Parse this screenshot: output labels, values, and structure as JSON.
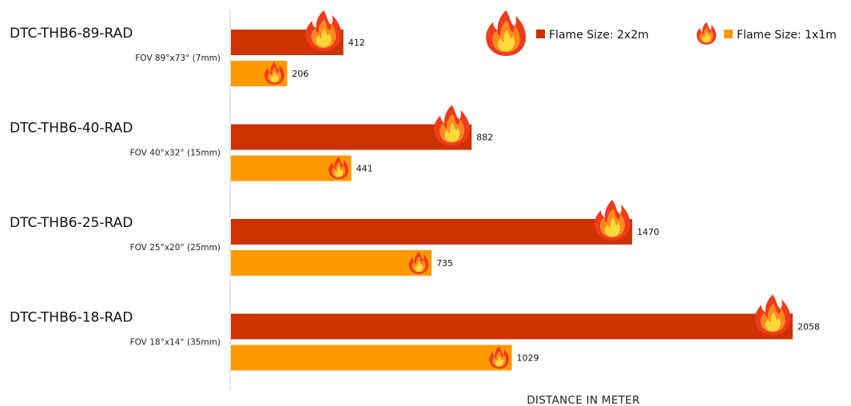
{
  "chart_data": {
    "type": "bar",
    "orientation": "horizontal",
    "title": "",
    "xlabel": "DISTANCE IN METER",
    "ylabel": "",
    "xlim": [
      0,
      2100
    ],
    "grid": false,
    "legend_position": "top-right",
    "categories": [
      {
        "name": "DTC-THB6-89-RAD",
        "fov": "FOV 89°x73° (7mm)"
      },
      {
        "name": "DTC-THB6-40-RAD",
        "fov": "FOV 40°x32° (15mm)"
      },
      {
        "name": "DTC-THB6-25-RAD",
        "fov": "FOV 25°x20° (25mm)"
      },
      {
        "name": "DTC-THB6-18-RAD",
        "fov": "FOV 18°x14° (35mm)"
      }
    ],
    "series": [
      {
        "name": "Flame Size: 2x2m",
        "color": "#cc3300",
        "icon": "flame-icon-large",
        "values": [
          412,
          882,
          1470,
          2058
        ]
      },
      {
        "name": "Flame Size: 1x1m",
        "color": "#ff9900",
        "icon": "flame-icon-small",
        "values": [
          206,
          441,
          735,
          1029
        ]
      }
    ]
  }
}
